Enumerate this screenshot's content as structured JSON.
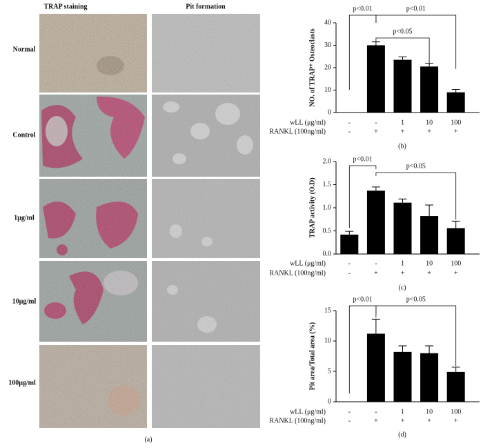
{
  "panel_a": {
    "column_headers": [
      "TRAP staining",
      "Pit formation"
    ],
    "row_labels": [
      "Normal",
      "Control",
      "1μg/ml",
      "10μg/ml",
      "100μg/ml"
    ],
    "caption": "(a)"
  },
  "chart_data": [
    {
      "type": "bar",
      "ylabel": "NO. of TRAP⁺ Osteoclasts",
      "caption": "(b)",
      "category_label": "wLL (μg/ml)",
      "categories": [
        "-",
        "-",
        "1",
        "10",
        "100"
      ],
      "rankl_label": "RANKL (100ng/ml)",
      "rankl": [
        "-",
        "+",
        "+",
        "+",
        "+"
      ],
      "values": [
        0,
        30,
        23.5,
        20.5,
        9
      ],
      "errors": [
        0,
        1.5,
        1.3,
        1.5,
        1.3
      ],
      "color": "#000000",
      "ylim": [
        0,
        40
      ],
      "yticks": [
        0,
        10,
        20,
        30,
        40
      ],
      "annotations": [
        "p<0.01",
        "p<0.01",
        "p<0.05"
      ]
    },
    {
      "type": "bar",
      "ylabel": "TRAP activity (O.D)",
      "caption": "(c)",
      "category_label": "wLL (μg/ml)",
      "categories": [
        "-",
        "-",
        "1",
        "10",
        "100"
      ],
      "rankl_label": "RANKL (100ng/ml)",
      "rankl": [
        "-",
        "+",
        "+",
        "+",
        "+"
      ],
      "values": [
        0.42,
        1.37,
        1.11,
        0.82,
        0.56
      ],
      "errors": [
        0.07,
        0.08,
        0.08,
        0.24,
        0.15
      ],
      "color": "#000000",
      "ylim": [
        0,
        2
      ],
      "yticks": [
        {
          "value": 0,
          "label": "0.0"
        },
        {
          "value": 0.5,
          "label": "0.5"
        },
        {
          "value": 1,
          "label": "1.0"
        },
        {
          "value": 1.5,
          "label": "1.5"
        },
        {
          "value": 2,
          "label": "2.0"
        }
      ],
      "annotations": [
        "p<0.01",
        "p<0.05"
      ]
    },
    {
      "type": "bar",
      "ylabel": "Pit area/Total area (%)",
      "caption": "(d)",
      "category_label": "wLL (μg/ml)",
      "categories": [
        "-",
        "-",
        "1",
        "10",
        "100"
      ],
      "rankl_label": "RANKL (100ng/ml)",
      "rankl": [
        "-",
        "+",
        "+",
        "+",
        "+"
      ],
      "values": [
        0,
        11.2,
        8.2,
        8.0,
        4.9
      ],
      "errors": [
        0,
        2.4,
        1.0,
        1.2,
        0.8
      ],
      "color": "#000000",
      "ylim": [
        0,
        15
      ],
      "yticks": [
        0,
        5,
        10,
        15
      ],
      "annotations": [
        "p<0.01",
        "p<0.05"
      ]
    }
  ]
}
